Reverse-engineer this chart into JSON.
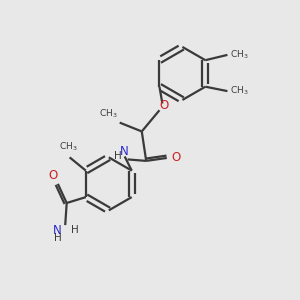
{
  "bg_color": "#e8e8e8",
  "bond_color": "#3a3a3a",
  "N_color": "#2b2bcc",
  "O_color": "#cc2222",
  "text_color": "#3a3a3a",
  "lw": 1.6,
  "figsize": [
    3.0,
    3.0
  ],
  "dpi": 100,
  "xlim": [
    0,
    10
  ],
  "ylim": [
    0,
    10
  ]
}
